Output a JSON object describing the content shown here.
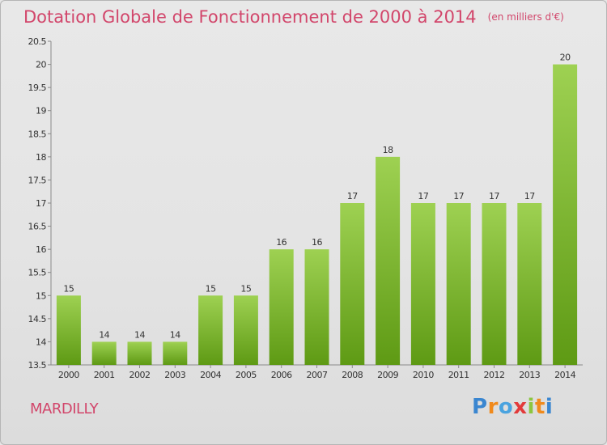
{
  "title": "Dotation Globale de Fonctionnement de 2000 à 2014",
  "subtitle": "(en milliers d'€)",
  "commune": "MARDILLY",
  "logo_text": "Proxiti",
  "colors": {
    "bar_light": "#9ed152",
    "bar_dark": "#5e9a14",
    "title": "#d2466b",
    "axis": "#888888"
  },
  "chart_data": {
    "type": "bar",
    "title": "Dotation Globale de Fonctionnement de 2000 à 2014",
    "subtitle": "(en milliers d'€)",
    "categories": [
      "2000",
      "2001",
      "2002",
      "2003",
      "2004",
      "2005",
      "2006",
      "2007",
      "2008",
      "2009",
      "2010",
      "2011",
      "2012",
      "2013",
      "2014"
    ],
    "values": [
      15,
      14,
      14,
      14,
      15,
      15,
      16,
      16,
      17,
      18,
      17,
      17,
      17,
      17,
      20
    ],
    "ylim": [
      13.5,
      20.5
    ],
    "yticks": [
      13.5,
      14,
      14.5,
      15,
      15.5,
      16,
      16.5,
      17,
      17.5,
      18,
      18.5,
      19,
      19.5,
      20,
      20.5
    ],
    "ytick_labels": [
      "13.5",
      "14",
      "14.5",
      "15",
      "15.5",
      "16",
      "16.5",
      "17",
      "17.5",
      "18",
      "18.5",
      "19",
      "19.5",
      "20",
      "20.5"
    ],
    "xlabel": "",
    "ylabel": "",
    "grid": false,
    "legend": "none"
  }
}
